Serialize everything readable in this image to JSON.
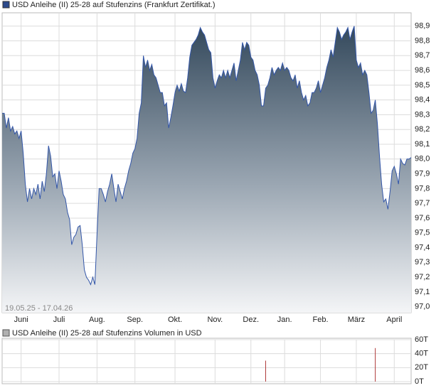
{
  "chart_data": [
    {
      "type": "area",
      "title": "USD Anleihe (II) 25-28 auf Stufenzins (Frankfurt Zertifikat.)",
      "note": "19.05.25 - 17.04.26",
      "color": "#3356a8",
      "values": [
        98.31,
        98.31,
        98.21,
        98.28,
        98.19,
        98.22,
        98.17,
        98.19,
        98.14,
        98.19,
        98.04,
        97.83,
        97.71,
        97.8,
        97.73,
        97.8,
        97.76,
        97.83,
        97.73,
        97.85,
        97.78,
        97.9,
        98.09,
        98.02,
        97.88,
        97.9,
        97.8,
        97.92,
        97.85,
        97.76,
        97.73,
        97.64,
        97.59,
        97.42,
        97.47,
        97.49,
        97.54,
        97.55,
        97.42,
        97.25,
        97.2,
        97.18,
        97.15,
        97.2,
        97.15,
        97.49,
        97.8,
        97.8,
        97.76,
        97.71,
        97.78,
        97.83,
        97.9,
        97.8,
        97.71,
        97.83,
        97.78,
        97.73,
        97.8,
        97.85,
        97.92,
        97.97,
        98.04,
        98.07,
        98.14,
        98.31,
        98.38,
        98.7,
        98.62,
        98.67,
        98.6,
        98.64,
        98.57,
        98.55,
        98.5,
        98.45,
        98.45,
        98.36,
        98.38,
        98.21,
        98.28,
        98.36,
        98.45,
        98.5,
        98.46,
        98.51,
        98.46,
        98.45,
        98.55,
        98.69,
        98.77,
        98.79,
        98.81,
        98.84,
        98.89,
        98.86,
        98.84,
        98.79,
        98.74,
        98.72,
        98.55,
        98.48,
        98.53,
        98.57,
        98.55,
        98.6,
        98.55,
        98.6,
        98.55,
        98.6,
        98.65,
        98.53,
        98.6,
        98.67,
        98.79,
        98.74,
        98.79,
        98.77,
        98.69,
        98.67,
        98.6,
        98.57,
        98.5,
        98.36,
        98.36,
        98.48,
        98.5,
        98.55,
        98.62,
        98.57,
        98.6,
        98.62,
        98.6,
        98.65,
        98.6,
        98.62,
        98.6,
        98.55,
        98.53,
        98.57,
        98.48,
        98.53,
        98.45,
        98.4,
        98.43,
        98.36,
        98.38,
        98.45,
        98.45,
        98.48,
        98.53,
        98.45,
        98.5,
        98.55,
        98.62,
        98.67,
        98.74,
        98.69,
        98.79,
        98.89,
        98.86,
        98.81,
        98.84,
        98.86,
        98.89,
        98.81,
        98.86,
        98.9,
        98.67,
        98.62,
        98.65,
        98.57,
        98.6,
        98.57,
        98.45,
        98.31,
        98.33,
        98.4,
        98.24,
        98.02,
        97.83,
        97.71,
        97.73,
        97.66,
        97.78,
        97.92,
        97.95,
        97.9,
        97.83,
        98.0,
        97.97,
        97.96,
        98.0,
        98.0,
        98.01
      ],
      "xlim": [
        0,
        194
      ],
      "xticks": [
        {
          "value": 9,
          "label": "Juni"
        },
        {
          "value": 27,
          "label": "Juli"
        },
        {
          "value": 45,
          "label": "Aug."
        },
        {
          "value": 63,
          "label": "Sep."
        },
        {
          "value": 82,
          "label": "Okt."
        },
        {
          "value": 101,
          "label": "Nov."
        },
        {
          "value": 118,
          "label": "Dez."
        },
        {
          "value": 134,
          "label": "Jan."
        },
        {
          "value": 151,
          "label": "Feb."
        },
        {
          "value": 168,
          "label": "März"
        },
        {
          "value": 186,
          "label": "April"
        }
      ],
      "ylim": [
        96.96,
        98.99
      ],
      "yticks": [
        {
          "value": 97.0,
          "label": "97,0"
        },
        {
          "value": 97.1,
          "label": "97,1"
        },
        {
          "value": 97.2,
          "label": "97,2"
        },
        {
          "value": 97.3,
          "label": "97,3"
        },
        {
          "value": 97.4,
          "label": "97,4"
        },
        {
          "value": 97.5,
          "label": "97,5"
        },
        {
          "value": 97.6,
          "label": "97,6"
        },
        {
          "value": 97.7,
          "label": "97,7"
        },
        {
          "value": 97.8,
          "label": "97,8"
        },
        {
          "value": 97.9,
          "label": "97,9"
        },
        {
          "value": 98.0,
          "label": "98,0"
        },
        {
          "value": 98.1,
          "label": "98,1"
        },
        {
          "value": 98.2,
          "label": "98,2"
        },
        {
          "value": 98.3,
          "label": "98,3"
        },
        {
          "value": 98.4,
          "label": "98,4"
        },
        {
          "value": 98.5,
          "label": "98,5"
        },
        {
          "value": 98.6,
          "label": "98,6"
        },
        {
          "value": 98.7,
          "label": "98,7"
        },
        {
          "value": 98.8,
          "label": "98,8"
        },
        {
          "value": 98.9,
          "label": "98,9"
        }
      ],
      "grid": true
    },
    {
      "type": "bar",
      "title": "USD Anleihe (II) 25-28 auf Stufenzins Volumen in USD",
      "color": "#b03a3a",
      "x": [
        125,
        177
      ],
      "values": [
        30,
        48
      ],
      "xlim": [
        0,
        194
      ],
      "ylim": [
        0,
        60
      ],
      "yticks": [
        {
          "value": 0,
          "label": "0T"
        },
        {
          "value": 20,
          "label": "20T"
        },
        {
          "value": 40,
          "label": "40T"
        },
        {
          "value": 60,
          "label": "60T"
        }
      ],
      "grid": true
    }
  ]
}
